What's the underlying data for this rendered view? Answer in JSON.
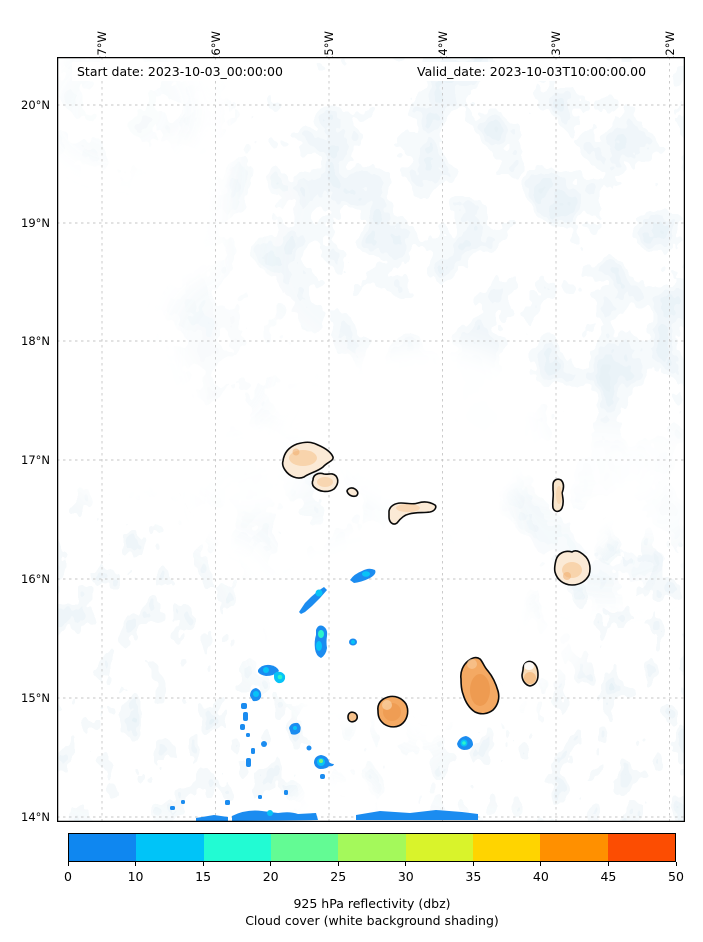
{
  "figure": {
    "start_date_label": "Start date: 2023-10-03_00:00:00",
    "valid_date_label": "Valid_date: 2023-10-03T10:00:00.00"
  },
  "axes": {
    "lon_ticks": [
      "27°W",
      "26°W",
      "25°W",
      "24°W",
      "23°W",
      "22°W"
    ],
    "lat_ticks": [
      "20°N",
      "19°N",
      "18°N",
      "17°N",
      "16°N",
      "15°N",
      "14°N"
    ]
  },
  "colorbar": {
    "tick_labels": [
      "0",
      "10",
      "15",
      "20",
      "25",
      "30",
      "35",
      "40",
      "45",
      "50"
    ],
    "segment_colors": [
      "#0f87f0",
      "#00c4f8",
      "#22fbd3",
      "#63fb94",
      "#a4f95b",
      "#d9f32b",
      "#ffd400",
      "#ff9000",
      "#fc4d02"
    ],
    "caption_line1": "925 hPa reflectivity (dbz)",
    "caption_line2": "Cloud cover (white background shading)"
  },
  "map_colors": {
    "cloud_shading": "#c9e0ec",
    "island_lowland_fill": "#fbead6",
    "island_highland_fill": "#f2a765",
    "island_outline": "#000000",
    "reflectivity_blue": "#1b8cf0",
    "reflectivity_cyan": "#07c3f7",
    "reflectivity_green": "#2cf3cb"
  },
  "chart_data": {
    "type": "heatmap",
    "title": "925 hPa reflectivity (dbz)",
    "subtitle": "Cloud cover (white background shading)",
    "start_date": "2023-10-03_00:00:00",
    "valid_date": "2023-10-03T10:00:00.00",
    "x_axis": {
      "label": "longitude",
      "ticks": [
        "27°W",
        "26°W",
        "25°W",
        "24°W",
        "23°W",
        "22°W"
      ],
      "range_west_to_east": [
        "27.4°W",
        "21.9°W"
      ]
    },
    "y_axis": {
      "label": "latitude",
      "ticks": [
        "20°N",
        "19°N",
        "18°N",
        "17°N",
        "16°N",
        "15°N",
        "14°N"
      ],
      "range_south_to_north": [
        "13.95°N",
        "20.4°N"
      ]
    },
    "colorbar": {
      "units": "dbz",
      "boundaries": [
        0,
        10,
        15,
        20,
        25,
        30,
        35,
        40,
        45,
        50
      ],
      "colors": [
        "#0f87f0",
        "#00c4f8",
        "#22fbd3",
        "#63fb94",
        "#a4f95b",
        "#d9f32b",
        "#ffd400",
        "#ff9000",
        "#fc4d02"
      ],
      "orientation": "horizontal",
      "position": "bottom"
    },
    "background_shading": "white-to-pale-blue mottled field = cloud cover",
    "land": "archipelago of outlined islands with tan/orange terrain fill, no labels shown",
    "grid": {
      "style": "dashed",
      "lon_spacing_deg": 1,
      "lat_spacing_deg": 1
    },
    "reflectivity_cells": [
      {
        "lon_deg_w": 24.7,
        "lat_deg_n": 16.05,
        "max_dbz": 15
      },
      {
        "lon_deg_w": 25.1,
        "lat_deg_n": 15.87,
        "max_dbz": 15
      },
      {
        "lon_deg_w": 25.07,
        "lat_deg_n": 15.48,
        "max_dbz": 22
      },
      {
        "lon_deg_w": 24.79,
        "lat_deg_n": 15.46,
        "max_dbz": 12
      },
      {
        "lon_deg_w": 25.55,
        "lat_deg_n": 15.22,
        "max_dbz": 15
      },
      {
        "lon_deg_w": 25.44,
        "lat_deg_n": 15.16,
        "max_dbz": 22
      },
      {
        "lon_deg_w": 25.67,
        "lat_deg_n": 15.03,
        "max_dbz": 15
      },
      {
        "lon_deg_w": 25.3,
        "lat_deg_n": 14.73,
        "max_dbz": 15
      },
      {
        "lon_deg_w": 25.08,
        "lat_deg_n": 14.46,
        "max_dbz": 22
      },
      {
        "lon_deg_w": 23.81,
        "lat_deg_n": 14.6,
        "max_dbz": 20
      },
      {
        "lon_deg_w": 25.5,
        "lat_deg_n": 13.98,
        "max_dbz": 10
      },
      {
        "lon_deg_w": 24.2,
        "lat_deg_n": 14.0,
        "max_dbz": 10
      }
    ]
  }
}
